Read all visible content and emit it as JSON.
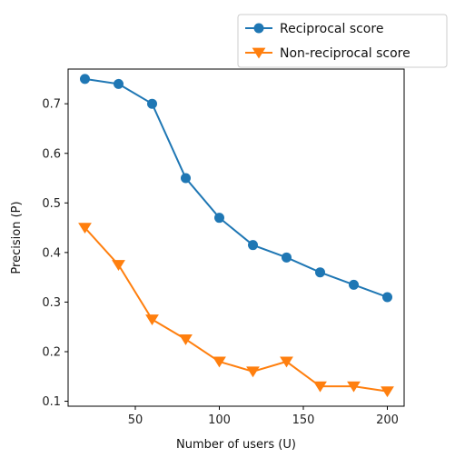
{
  "chart_data": {
    "type": "line",
    "title": "",
    "xlabel": "Number of users (U)",
    "ylabel": "Precision (P)",
    "xlim": [
      10,
      210
    ],
    "ylim": [
      0.09,
      0.77
    ],
    "xticks": [
      50,
      100,
      150,
      200
    ],
    "yticks": [
      0.1,
      0.2,
      0.3,
      0.4,
      0.5,
      0.6,
      0.7
    ],
    "x": [
      20,
      40,
      60,
      80,
      100,
      120,
      140,
      160,
      180,
      200
    ],
    "series": [
      {
        "name": "Reciprocal score",
        "color": "#1f77b4",
        "marker": "circle",
        "values": [
          0.75,
          0.74,
          0.7,
          0.55,
          0.47,
          0.415,
          0.39,
          0.36,
          0.335,
          0.31
        ]
      },
      {
        "name": "Non-reciprocal score",
        "color": "#ff7f0e",
        "marker": "triangle-down",
        "values": [
          0.45,
          0.375,
          0.265,
          0.225,
          0.18,
          0.16,
          0.18,
          0.13,
          0.13,
          0.12
        ]
      }
    ],
    "legend_position": "top-right, outside plot",
    "grid": false
  }
}
